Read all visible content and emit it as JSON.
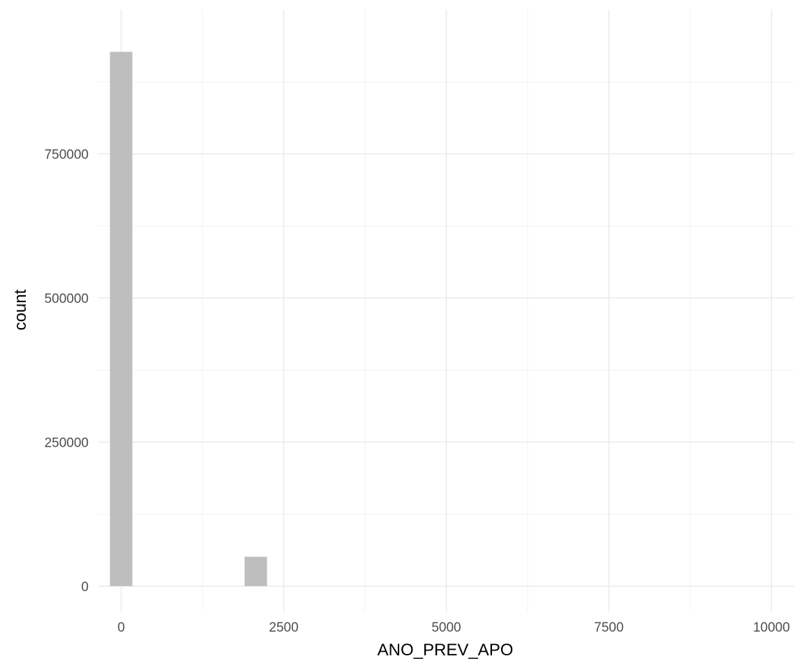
{
  "chart_data": {
    "type": "bar",
    "xlabel": "ANO_PREV_APO",
    "ylabel": "count",
    "title": "",
    "xlim": [
      -350,
      10350
    ],
    "ylim": [
      -45000,
      1000000
    ],
    "x_ticks": [
      0,
      2500,
      5000,
      7500,
      10000
    ],
    "x_tick_labels": [
      "0",
      "2500",
      "5000",
      "7500",
      "10000"
    ],
    "y_ticks": [
      0,
      250000,
      500000,
      750000
    ],
    "y_tick_labels": [
      "0",
      "250000",
      "500000",
      "750000"
    ],
    "bin_width": 345,
    "bins": [
      {
        "x": 0,
        "count": 927000
      },
      {
        "x": 2070,
        "count": 51000
      }
    ],
    "grid": true,
    "legend": "none",
    "colors": {
      "bar": "#bebebe",
      "grid_major": "#ebebeb",
      "grid_minor": "#f2f2f2",
      "tick_text": "#4d4d4d",
      "title_text": "#000000"
    }
  }
}
